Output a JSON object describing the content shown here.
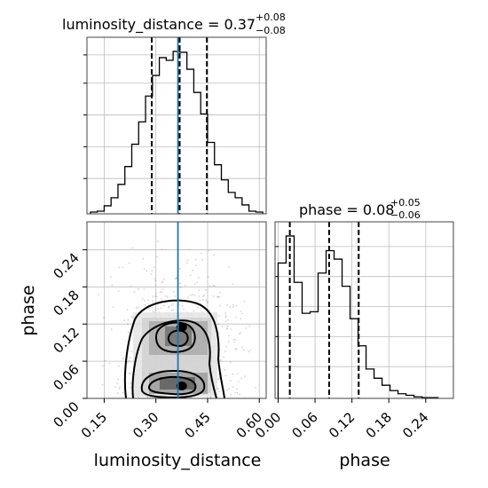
{
  "chart_data": [
    {
      "id": "luminosity_distance_marginal",
      "type": "histogram",
      "title": "luminosity_distance = 0.37",
      "title_label": "luminosity_distance = 0.37",
      "title_plus": "+0.08",
      "title_minus": "−0.08",
      "x": [
        0.12,
        0.14,
        0.16,
        0.18,
        0.2,
        0.22,
        0.24,
        0.26,
        0.28,
        0.3,
        0.32,
        0.34,
        0.36,
        0.38,
        0.4,
        0.42,
        0.44,
        0.46,
        0.48,
        0.5,
        0.52,
        0.54,
        0.56,
        0.58,
        0.6
      ],
      "values": [
        2,
        3,
        9,
        18,
        33,
        53,
        78,
        103,
        132,
        155,
        175,
        172,
        182,
        181,
        162,
        136,
        112,
        80,
        55,
        38,
        24,
        18,
        10,
        3,
        2
      ],
      "xlim": [
        0.1,
        0.62
      ],
      "quantile_lines": [
        0.288,
        0.369,
        0.448
      ],
      "truth_line": 0.364,
      "grid": true
    },
    {
      "id": "phase_marginal",
      "type": "histogram",
      "title": "phase = 0.08",
      "title_label": "phase = 0.08",
      "title_plus": "+0.05",
      "title_minus": "−0.06",
      "x": [
        0.0065,
        0.0195,
        0.0325,
        0.0455,
        0.0585,
        0.0715,
        0.0845,
        0.0975,
        0.1105,
        0.1235,
        0.1365,
        0.1495,
        0.1625,
        0.1755,
        0.1885,
        0.2015,
        0.2145,
        0.2275,
        0.2405,
        0.2535
      ],
      "values": [
        175,
        210,
        150,
        110,
        112,
        162,
        191,
        180,
        145,
        103,
        68,
        38,
        26,
        17,
        10,
        6,
        4,
        2,
        1,
        1
      ],
      "xlim": [
        -0.005,
        0.285
      ],
      "quantile_lines": [
        0.019,
        0.083,
        0.131
      ],
      "grid": true
    },
    {
      "id": "joint_luminosity_distance_phase",
      "type": "contour",
      "xlim": [
        0.1,
        0.62
      ],
      "ylim": [
        0.0,
        0.285
      ],
      "truth_x": 0.364,
      "modes": [
        [
          0.38,
          0.115
        ],
        [
          0.38,
          0.02
        ]
      ],
      "grid": true
    }
  ],
  "axes": {
    "x_left_label": "luminosity_distance",
    "x_right_label": "phase",
    "y_left_label": "phase",
    "x_left_ticks": [
      "0.15",
      "0.30",
      "0.45",
      "0.60"
    ],
    "x_right_ticks": [
      "0.00",
      "0.06",
      "0.12",
      "0.18",
      "0.24"
    ],
    "y_left_ticks": [
      "0.00",
      "0.06",
      "0.12",
      "0.18",
      "0.24"
    ],
    "x_left_tick_values": [
      0.15,
      0.3,
      0.45,
      0.6
    ],
    "x_right_tick_values": [
      0.0,
      0.06,
      0.12,
      0.18,
      0.24
    ],
    "y_left_tick_values": [
      0.0,
      0.06,
      0.12,
      0.18,
      0.24
    ]
  },
  "colors": {
    "truth_line": "#1f77b4",
    "histogram": "#000000",
    "points": "#808080"
  }
}
